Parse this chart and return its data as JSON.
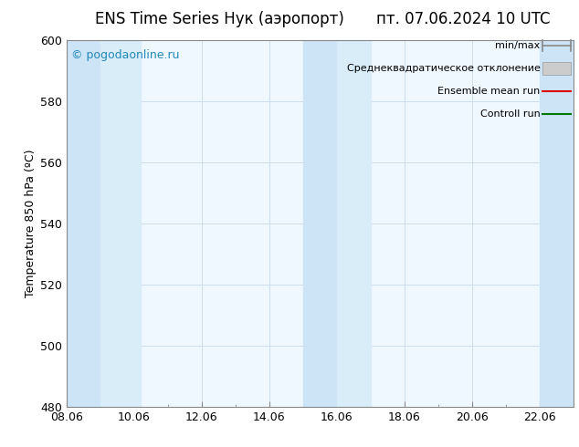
{
  "title_left": "ENS Time Series Нук (аэропорт)",
  "title_right": "пт. 07.06.2024 10 UTC",
  "ylabel": "Temperature 850 hPa (ºC)",
  "ylim": [
    480,
    600
  ],
  "yticks": [
    480,
    500,
    520,
    540,
    560,
    580,
    600
  ],
  "xtick_labels": [
    "08.06",
    "10.06",
    "12.06",
    "14.06",
    "16.06",
    "18.06",
    "20.06",
    "22.06"
  ],
  "xtick_positions": [
    0,
    2,
    4,
    6,
    8,
    10,
    12,
    14
  ],
  "xlim": [
    0,
    15
  ],
  "bg_color": "#ffffff",
  "plot_bg_color": "#f0f8ff",
  "shaded_bands": [
    {
      "start": 0,
      "end": 1,
      "color": "#cce4f5"
    },
    {
      "start": 1,
      "end": 2.2,
      "color": "#d8edf8"
    },
    {
      "start": 7,
      "end": 8,
      "color": "#cce4f5"
    },
    {
      "start": 8,
      "end": 9,
      "color": "#d8edf8"
    },
    {
      "start": 14,
      "end": 15,
      "color": "#cce4f5"
    }
  ],
  "watermark_text": "© pogodaonline.ru",
  "watermark_color": "#2288bb",
  "legend_labels": [
    "min/max",
    "Среднеквадратическое отклонение",
    "Ensemble mean run",
    "Controll run"
  ],
  "legend_line_colors": [
    "#888888",
    "#aaaaaa",
    "#dd0000",
    "#007700"
  ],
  "title_fontsize": 12,
  "tick_fontsize": 9,
  "ylabel_fontsize": 9,
  "legend_fontsize": 8
}
